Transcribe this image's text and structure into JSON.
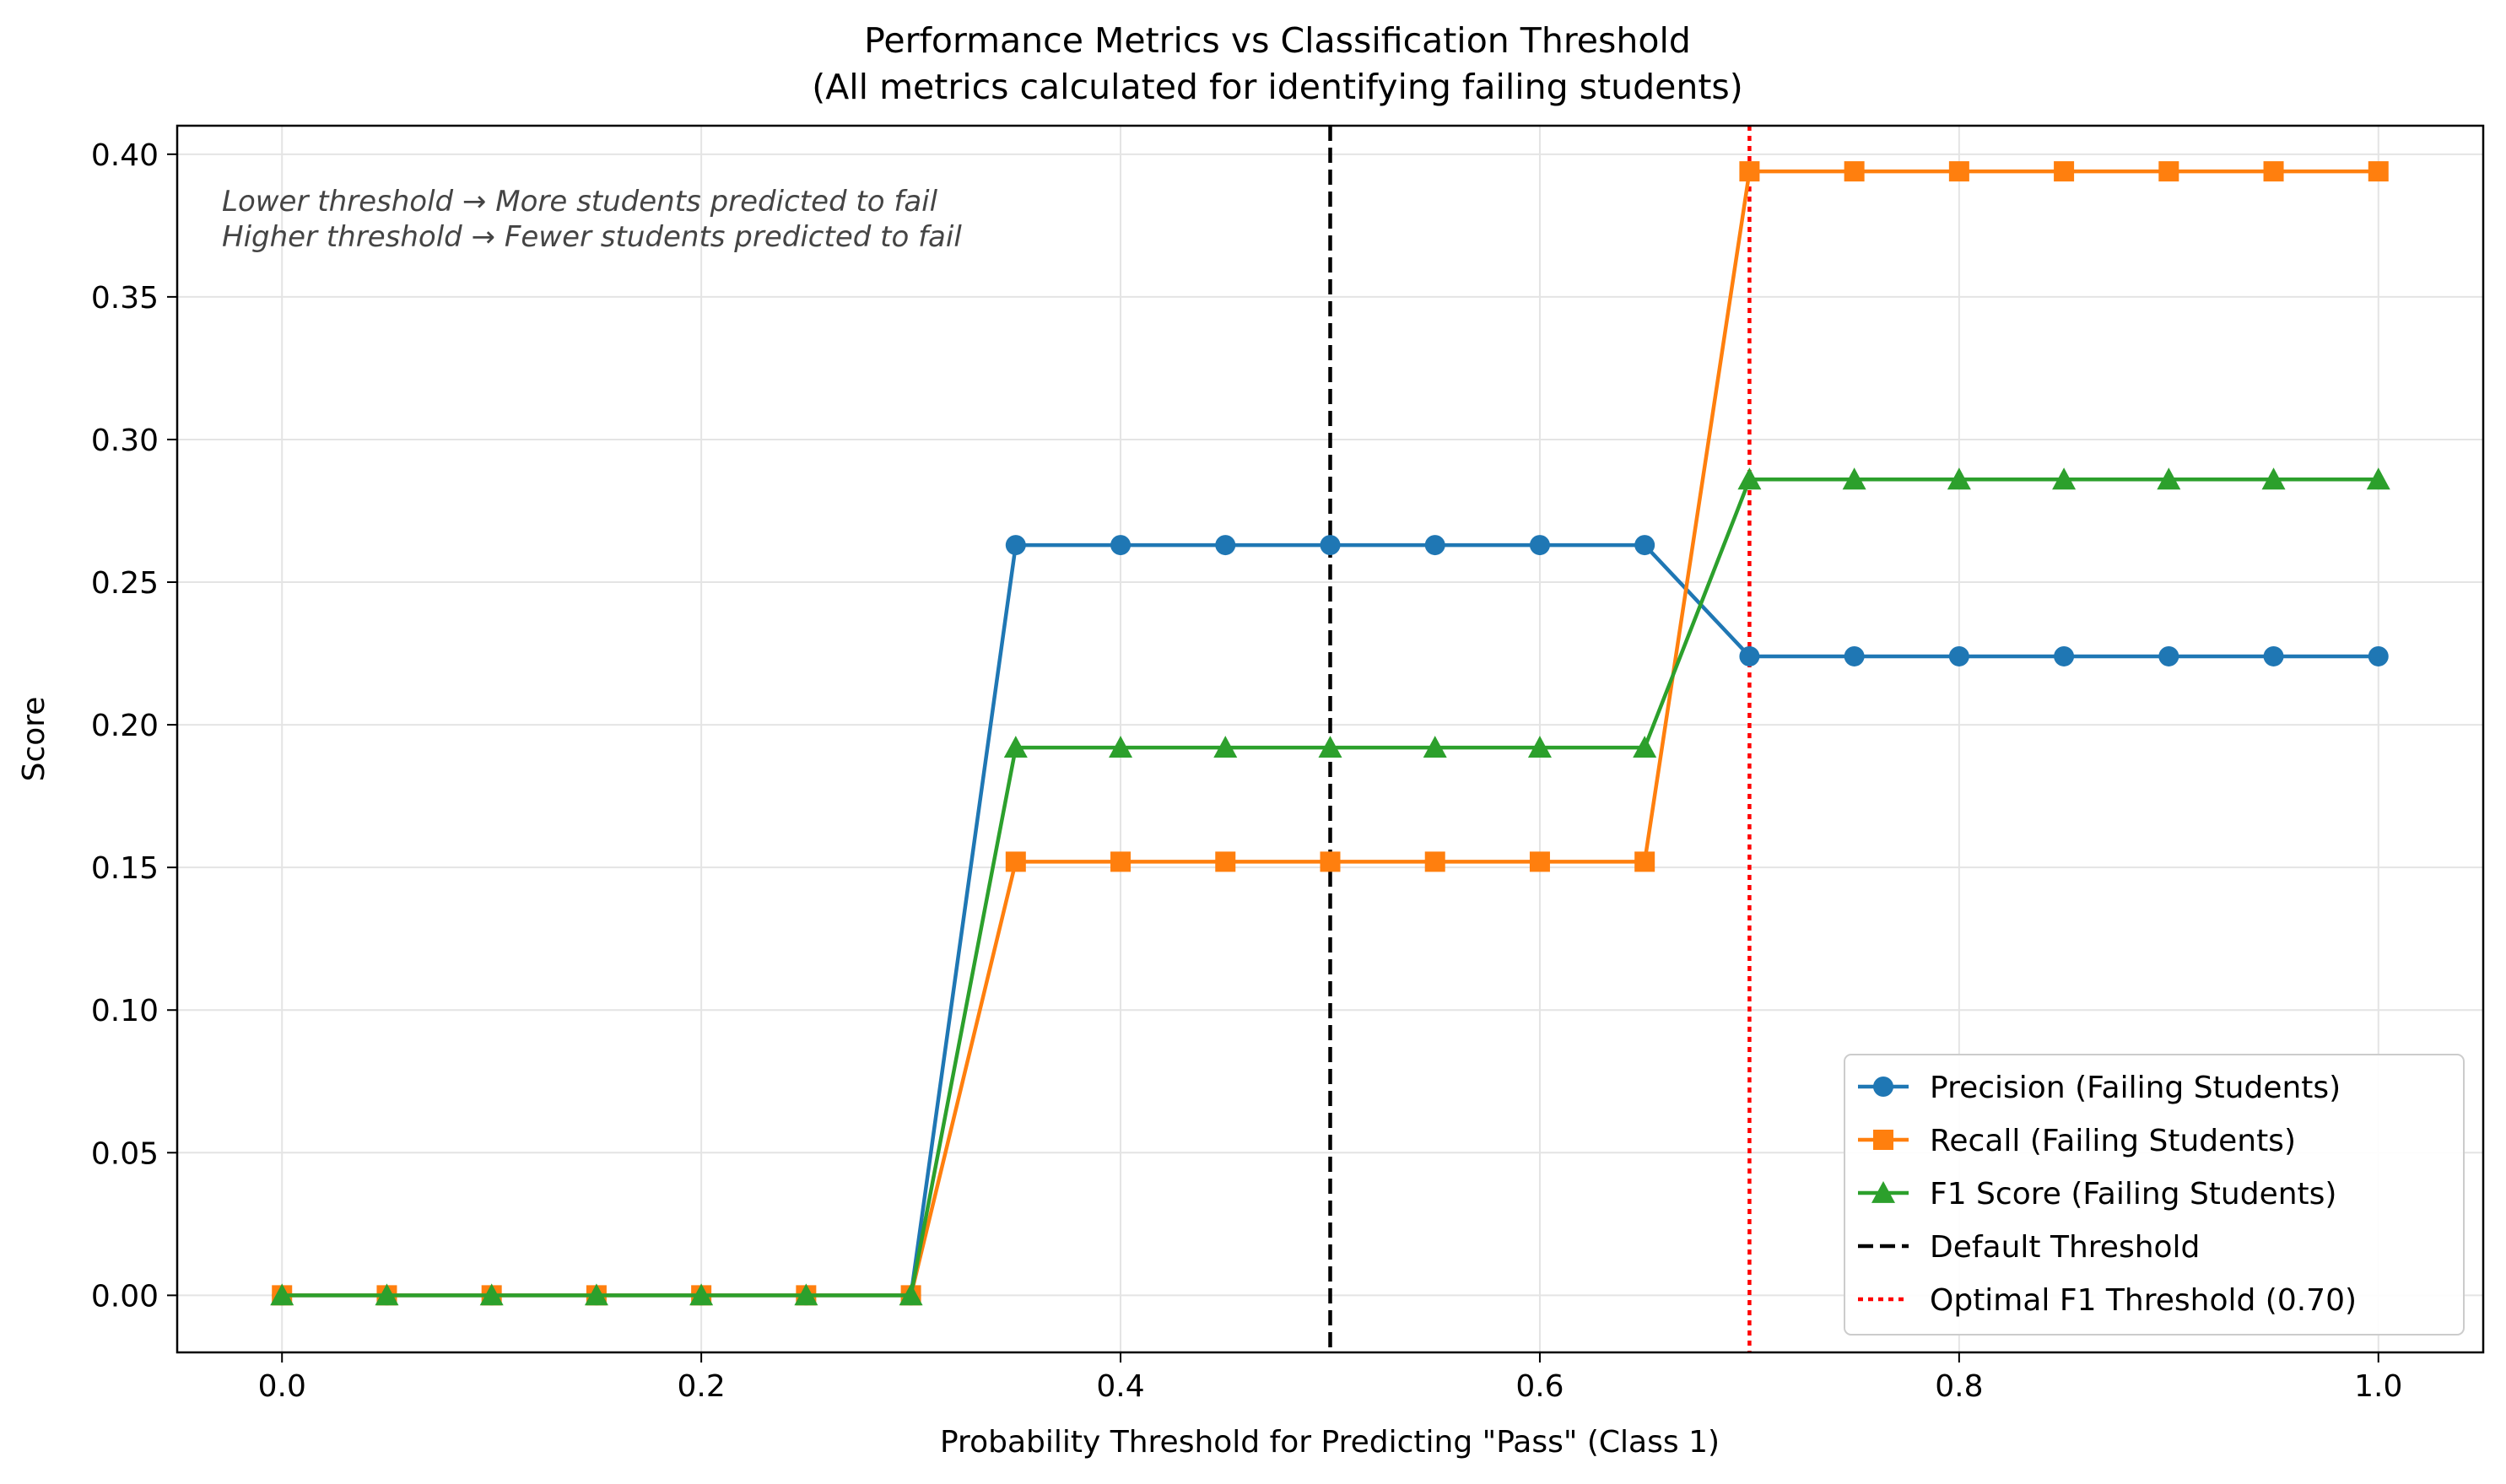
{
  "chart_data": {
    "type": "line",
    "title": "Performance Metrics vs Classification Threshold",
    "subtitle": "(All metrics calculated for identifying failing students)",
    "xlabel": "Probability Threshold for Predicting \"Pass\" (Class 1)",
    "ylabel": "Score",
    "xlim": [
      -0.05,
      1.05
    ],
    "ylim": [
      -0.02,
      0.41
    ],
    "xticks": [
      0.0,
      0.2,
      0.4,
      0.6,
      0.8,
      1.0
    ],
    "xtick_labels": [
      "0.0",
      "0.2",
      "0.4",
      "0.6",
      "0.8",
      "1.0"
    ],
    "yticks": [
      0.0,
      0.05,
      0.1,
      0.15,
      0.2,
      0.25,
      0.3,
      0.35,
      0.4
    ],
    "ytick_labels": [
      "0.00",
      "0.05",
      "0.10",
      "0.15",
      "0.20",
      "0.25",
      "0.30",
      "0.35",
      "0.40"
    ],
    "grid": true,
    "legend_position": "bottom-right",
    "x": [
      0.0,
      0.05,
      0.1,
      0.15,
      0.2,
      0.25,
      0.3,
      0.35,
      0.4,
      0.45,
      0.5,
      0.55,
      0.6,
      0.65,
      0.7,
      0.75,
      0.8,
      0.85,
      0.9,
      0.95,
      1.0
    ],
    "series": [
      {
        "name": "Precision (Failing Students)",
        "color": "#1f77b4",
        "marker": "circle",
        "values": [
          0,
          0,
          0,
          0,
          0,
          0,
          0,
          0.263,
          0.263,
          0.263,
          0.263,
          0.263,
          0.263,
          0.263,
          0.224,
          0.224,
          0.224,
          0.224,
          0.224,
          0.224,
          0.224
        ]
      },
      {
        "name": "Recall (Failing Students)",
        "color": "#ff7f0e",
        "marker": "square",
        "values": [
          0,
          0,
          0,
          0,
          0,
          0,
          0,
          0.152,
          0.152,
          0.152,
          0.152,
          0.152,
          0.152,
          0.152,
          0.394,
          0.394,
          0.394,
          0.394,
          0.394,
          0.394,
          0.394
        ]
      },
      {
        "name": "F1 Score (Failing Students)",
        "color": "#2ca02c",
        "marker": "triangle",
        "values": [
          0,
          0,
          0,
          0,
          0,
          0,
          0,
          0.192,
          0.192,
          0.192,
          0.192,
          0.192,
          0.192,
          0.192,
          0.286,
          0.286,
          0.286,
          0.286,
          0.286,
          0.286,
          0.286
        ]
      }
    ],
    "vlines": [
      {
        "name": "Default Threshold",
        "x": 0.5,
        "color": "#000000",
        "style": "dashed"
      },
      {
        "name": "Optimal F1 Threshold (0.70)",
        "x": 0.7,
        "color": "#ff0000",
        "style": "dotted"
      }
    ],
    "annotations": [
      "Lower threshold → More students predicted to fail",
      "Higher threshold → Fewer students predicted to fail"
    ]
  }
}
